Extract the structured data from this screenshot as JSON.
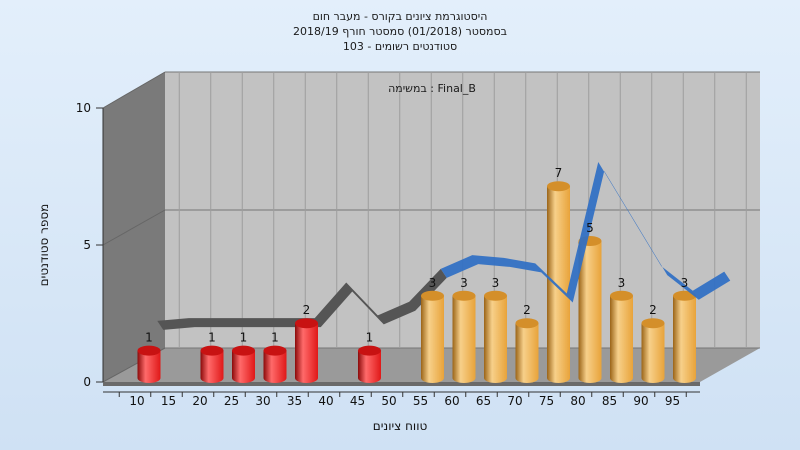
{
  "chart_data": {
    "type": "bar",
    "title_lines": [
      "היסטוגרמת ציונים בקורס - מעבר חום",
      "בסמסטר  (01/2018)  סמסטר חורף 2018/19",
      "103 - סטודנטים רשומים"
    ],
    "subtitle": "במשימה : Final_B",
    "xlabel": "טווח ציונים",
    "ylabel": "מספר סטודנטים",
    "x_ticks": [
      "10",
      "15",
      "20",
      "25",
      "30",
      "35",
      "40",
      "45",
      "50",
      "55",
      "60",
      "65",
      "70",
      "75",
      "80",
      "85",
      "90",
      "95"
    ],
    "y_ticks": [
      "0",
      "5",
      "10"
    ],
    "ylim": [
      0,
      10
    ],
    "grid": true,
    "categories": [
      "10",
      "15",
      "20",
      "25",
      "30",
      "35",
      "40",
      "45",
      "50",
      "55",
      "60",
      "65",
      "70",
      "75",
      "80",
      "85",
      "90",
      "95"
    ],
    "values": [
      1,
      0,
      1,
      1,
      1,
      2,
      0,
      1,
      0,
      3,
      3,
      3,
      2,
      7,
      5,
      3,
      2,
      3
    ],
    "data_labels": [
      "1",
      "",
      "1",
      "1",
      "1",
      "2",
      "",
      "1",
      "",
      "3",
      "3",
      "3",
      "2",
      "7",
      "5",
      "3",
      "2",
      "3"
    ],
    "trend_line": [
      1.5,
      1.6,
      1.6,
      1.6,
      1.6,
      1.6,
      2.9,
      1.7,
      2.2,
      3.4,
      3.9,
      3.8,
      3.6,
      2.5,
      7.3,
      5.4,
      3.5,
      2.6,
      3.3
    ],
    "colors": {
      "fail_bar": "#e01818",
      "pass_bar": "#e8a33a",
      "trend_front": "#2f6fc4",
      "trend_back": "#555555",
      "plot_back": "#c2c2c2",
      "plot_side": "#7a7a7a",
      "floor": "#9a9a9a"
    }
  }
}
